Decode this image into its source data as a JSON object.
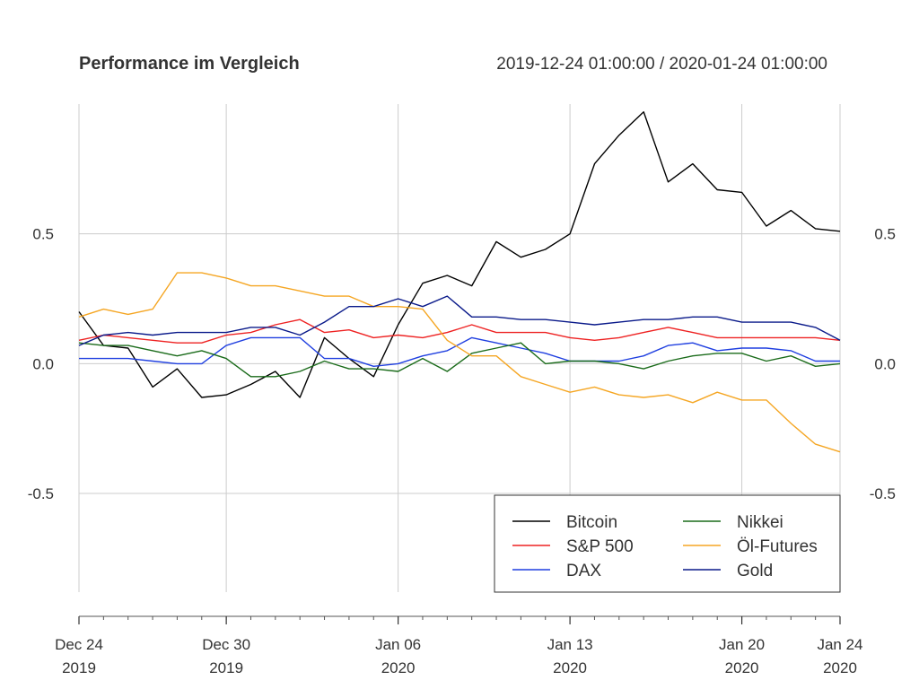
{
  "chart_data": {
    "type": "line",
    "title": "Performance im Vergleich",
    "subtitle": "2019-12-24 01:00:00 / 2020-01-24 01:00:00",
    "x": [
      "2019-12-24",
      "2019-12-25",
      "2019-12-26",
      "2019-12-27",
      "2019-12-28",
      "2019-12-29",
      "2019-12-30",
      "2019-12-31",
      "2020-01-01",
      "2020-01-02",
      "2020-01-03",
      "2020-01-04",
      "2020-01-05",
      "2020-01-06",
      "2020-01-07",
      "2020-01-08",
      "2020-01-09",
      "2020-01-10",
      "2020-01-11",
      "2020-01-12",
      "2020-01-13",
      "2020-01-14",
      "2020-01-15",
      "2020-01-16",
      "2020-01-17",
      "2020-01-18",
      "2020-01-19",
      "2020-01-20",
      "2020-01-21",
      "2020-01-22",
      "2020-01-23",
      "2020-01-24"
    ],
    "ylim": [
      -0.88,
      1.0
    ],
    "grid": true,
    "legend_position": "bottom-right",
    "y_ticks": [
      {
        "value": 0.5,
        "label": "0.5"
      },
      {
        "value": 0.0,
        "label": "0.0"
      },
      {
        "value": -0.5,
        "label": "-0.5"
      }
    ],
    "x_ticks": [
      {
        "date": "2019-12-24",
        "line1": "Dec 24",
        "line2": "2019"
      },
      {
        "date": "2019-12-30",
        "line1": "Dec 30",
        "line2": "2019"
      },
      {
        "date": "2020-01-06",
        "line1": "Jan 06",
        "line2": "2020"
      },
      {
        "date": "2020-01-13",
        "line1": "Jan 13",
        "line2": "2020"
      },
      {
        "date": "2020-01-20",
        "line1": "Jan 20",
        "line2": "2020"
      },
      {
        "date": "2020-01-24",
        "line1": "Jan 24",
        "line2": "2020"
      }
    ],
    "series": [
      {
        "name": "Bitcoin",
        "color": "#000000",
        "values": [
          0.2,
          0.07,
          0.06,
          -0.09,
          -0.02,
          -0.13,
          -0.12,
          -0.08,
          -0.03,
          -0.13,
          0.1,
          0.02,
          -0.05,
          0.15,
          0.31,
          0.34,
          0.3,
          0.47,
          0.41,
          0.44,
          0.5,
          0.77,
          0.88,
          0.97,
          0.7,
          0.77,
          0.67,
          0.66,
          0.53,
          0.59,
          0.52,
          0.51
        ]
      },
      {
        "name": "S&P 500",
        "color": "#ee2222",
        "values": [
          0.09,
          0.11,
          0.1,
          0.09,
          0.08,
          0.08,
          0.11,
          0.12,
          0.15,
          0.17,
          0.12,
          0.13,
          0.1,
          0.11,
          0.1,
          0.12,
          0.15,
          0.12,
          0.12,
          0.12,
          0.1,
          0.09,
          0.1,
          0.12,
          0.14,
          0.12,
          0.1,
          0.1,
          0.1,
          0.1,
          0.1,
          0.09
        ]
      },
      {
        "name": "DAX",
        "color": "#1f3fe0",
        "values": [
          0.02,
          0.02,
          0.02,
          0.01,
          0.0,
          0.0,
          0.07,
          0.1,
          0.1,
          0.1,
          0.02,
          0.02,
          -0.01,
          0.0,
          0.03,
          0.05,
          0.1,
          0.08,
          0.06,
          0.04,
          0.01,
          0.01,
          0.01,
          0.03,
          0.07,
          0.08,
          0.05,
          0.06,
          0.06,
          0.05,
          0.01,
          0.01
        ]
      },
      {
        "name": "Nikkei",
        "color": "#1a6b1a",
        "values": [
          0.08,
          0.07,
          0.07,
          0.05,
          0.03,
          0.05,
          0.02,
          -0.05,
          -0.05,
          -0.03,
          0.01,
          -0.02,
          -0.02,
          -0.03,
          0.02,
          -0.03,
          0.04,
          0.06,
          0.08,
          0.0,
          0.01,
          0.01,
          0.0,
          -0.02,
          0.01,
          0.03,
          0.04,
          0.04,
          0.01,
          0.03,
          -0.01,
          0.0
        ]
      },
      {
        "name": "Öl-Futures",
        "color": "#f5a623",
        "values": [
          0.18,
          0.21,
          0.19,
          0.21,
          0.35,
          0.35,
          0.33,
          0.3,
          0.3,
          0.28,
          0.26,
          0.26,
          0.22,
          0.22,
          0.21,
          0.09,
          0.03,
          0.03,
          -0.05,
          -0.08,
          -0.11,
          -0.09,
          -0.12,
          -0.13,
          -0.12,
          -0.15,
          -0.11,
          -0.14,
          -0.14,
          -0.23,
          -0.31,
          -0.34
        ]
      },
      {
        "name": "Gold",
        "color": "#0a1a8a",
        "values": [
          0.07,
          0.11,
          0.12,
          0.11,
          0.12,
          0.12,
          0.12,
          0.14,
          0.14,
          0.11,
          0.16,
          0.22,
          0.22,
          0.25,
          0.22,
          0.26,
          0.18,
          0.18,
          0.17,
          0.17,
          0.16,
          0.15,
          0.16,
          0.17,
          0.17,
          0.18,
          0.18,
          0.16,
          0.16,
          0.16,
          0.14,
          0.09
        ]
      }
    ]
  }
}
